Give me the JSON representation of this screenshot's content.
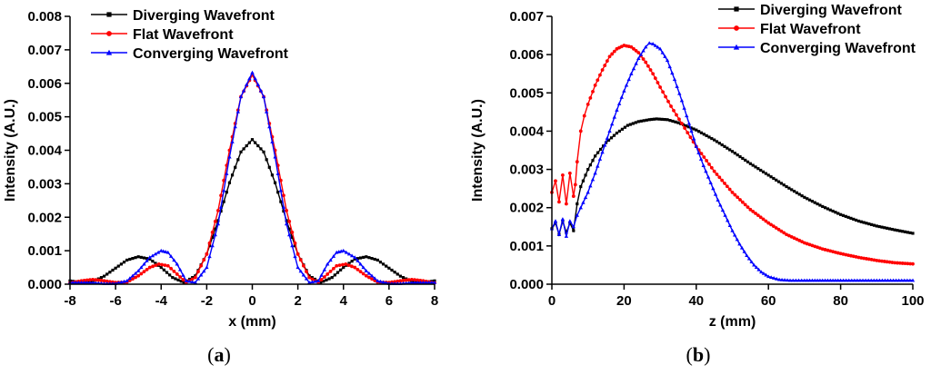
{
  "chart_data": [
    {
      "id": "a",
      "type": "line",
      "caption": "a",
      "xlabel": "x (mm)",
      "ylabel": "Intensity (A.U.)",
      "xlim": [
        -8,
        8
      ],
      "ylim": [
        0,
        0.008
      ],
      "xticks": [
        -8,
        -6,
        -4,
        -2,
        0,
        2,
        4,
        6,
        8
      ],
      "yticks": [
        0,
        0.001,
        0.002,
        0.003,
        0.004,
        0.005,
        0.006,
        0.007,
        0.008
      ],
      "xtick_labels": [
        "-8",
        "-6",
        "-4",
        "-2",
        "0",
        "2",
        "4",
        "6",
        "8"
      ],
      "ytick_labels": [
        "0.000",
        "0.001",
        "0.002",
        "0.003",
        "0.004",
        "0.005",
        "0.006",
        "0.007",
        "0.008"
      ],
      "legend_position": "top-left",
      "series": [
        {
          "name": "Diverging Wavefront",
          "color": "#000000",
          "marker": "square",
          "x": [
            0,
            0.5,
            1,
            1.5,
            2,
            2.5,
            3,
            3.5,
            4,
            4.5,
            5,
            5.5,
            6,
            6.5,
            7,
            7.5,
            8
          ],
          "y": [
            0.00432,
            0.00395,
            0.00303,
            0.0019,
            0.0009,
            0.00025,
            5e-05,
            0.0002,
            0.0005,
            0.00075,
            0.00082,
            0.00072,
            0.00048,
            0.00024,
            8e-05,
            5e-05,
            0.0001
          ],
          "symmetric": true
        },
        {
          "name": "Flat Wavefront",
          "color": "#ff0000",
          "marker": "circle",
          "x": [
            0,
            0.5,
            1,
            1.5,
            2,
            2.5,
            2.9,
            3.3,
            3.7,
            4.1,
            4.5,
            5,
            5.5,
            6,
            6.5,
            7,
            7.5,
            8
          ],
          "y": [
            0.00625,
            0.0056,
            0.004,
            0.0022,
            0.0009,
            0.0002,
            5e-05,
            0.0003,
            0.00055,
            0.0006,
            0.0005,
            0.00025,
            6e-05,
            5e-05,
            0.0001,
            0.00014,
            0.0001,
            4e-05
          ],
          "symmetric": true
        },
        {
          "name": "Converging Wavefront",
          "color": "#0000ff",
          "marker": "triangle",
          "x": [
            0,
            0.5,
            1,
            1.5,
            2,
            2.5,
            2.9,
            3.3,
            3.7,
            4.0,
            4.5,
            5,
            5.5,
            6,
            6.5,
            7,
            7.5,
            8
          ],
          "y": [
            0.00632,
            0.0056,
            0.0038,
            0.0018,
            0.0005,
            5e-05,
            0.0001,
            0.0006,
            0.00095,
            0.001,
            0.0008,
            0.0004,
            0.0001,
            2e-05,
            2e-05,
            4e-05,
            5e-05,
            5e-05
          ],
          "symmetric": true
        }
      ]
    },
    {
      "id": "b",
      "type": "line",
      "caption": "b",
      "xlabel": "z (mm)",
      "ylabel": "Intensity (A.U.)",
      "xlim": [
        0,
        100
      ],
      "ylim": [
        0,
        0.007
      ],
      "xticks": [
        0,
        20,
        40,
        60,
        80,
        100
      ],
      "yticks": [
        0,
        0.001,
        0.002,
        0.003,
        0.004,
        0.005,
        0.006,
        0.007
      ],
      "xtick_labels": [
        "0",
        "20",
        "40",
        "60",
        "80",
        "100"
      ],
      "ytick_labels": [
        "0.000",
        "0.001",
        "0.002",
        "0.003",
        "0.004",
        "0.005",
        "0.006",
        "0.007"
      ],
      "legend_position": "top-right",
      "series": [
        {
          "name": "Diverging Wavefront",
          "color": "#000000",
          "marker": "square",
          "x": [
            0,
            1,
            2,
            3,
            4,
            5,
            6,
            7,
            8,
            10,
            12,
            15,
            18,
            21,
            24,
            27,
            29,
            32,
            35,
            40,
            45,
            50,
            55,
            60,
            65,
            70,
            75,
            80,
            85,
            90,
            95,
            100
          ],
          "y": [
            0.00145,
            0.0016,
            0.0013,
            0.00165,
            0.00135,
            0.0016,
            0.0014,
            0.0021,
            0.00255,
            0.003,
            0.00335,
            0.0037,
            0.00395,
            0.00415,
            0.00425,
            0.0043,
            0.00432,
            0.0043,
            0.00422,
            0.00403,
            0.00377,
            0.00347,
            0.00315,
            0.00285,
            0.00255,
            0.00227,
            0.00203,
            0.00182,
            0.00165,
            0.00152,
            0.00142,
            0.00133
          ]
        },
        {
          "name": "Flat Wavefront",
          "color": "#ff0000",
          "marker": "circle",
          "x": [
            0,
            1,
            2,
            3,
            4,
            5,
            6,
            6.5,
            7,
            8,
            9,
            10,
            12,
            14,
            16,
            18,
            20,
            22,
            24,
            26,
            28,
            30,
            33,
            36,
            40,
            45,
            50,
            55,
            60,
            65,
            70,
            75,
            80,
            85,
            90,
            95,
            100
          ],
          "y": [
            0.0024,
            0.0027,
            0.00215,
            0.00285,
            0.0021,
            0.0029,
            0.0023,
            0.0026,
            0.0032,
            0.004,
            0.0044,
            0.0047,
            0.0052,
            0.0056,
            0.00595,
            0.00615,
            0.00624,
            0.0062,
            0.00605,
            0.0058,
            0.0055,
            0.00515,
            0.00465,
            0.0042,
            0.0036,
            0.00295,
            0.0024,
            0.00195,
            0.0016,
            0.0013,
            0.00108,
            0.00092,
            0.0008,
            0.0007,
            0.00062,
            0.00056,
            0.00053
          ]
        },
        {
          "name": "Converging Wavefront",
          "color": "#0000ff",
          "marker": "triangle",
          "x": [
            0,
            1,
            2,
            3,
            4,
            5,
            6,
            7,
            8,
            10,
            12,
            14,
            16,
            18,
            20,
            22,
            24,
            26,
            27,
            28,
            30,
            32,
            34,
            36,
            38,
            40,
            42,
            44,
            46,
            48,
            50,
            52,
            54,
            56,
            58,
            60,
            63,
            66,
            70,
            75,
            80,
            90,
            100
          ],
          "y": [
            0.00145,
            0.00165,
            0.0013,
            0.0017,
            0.00125,
            0.00165,
            0.0015,
            0.0018,
            0.002,
            0.0024,
            0.0029,
            0.00345,
            0.004,
            0.00455,
            0.00505,
            0.0055,
            0.0059,
            0.0062,
            0.0063,
            0.00628,
            0.00615,
            0.00585,
            0.00535,
            0.0048,
            0.0042,
            0.0036,
            0.0031,
            0.00265,
            0.0022,
            0.0018,
            0.0014,
            0.00105,
            0.00075,
            0.0005,
            0.00032,
            0.0002,
            0.00012,
            0.0001,
            0.0001,
            0.0001,
            0.0001,
            0.0001,
            0.0001
          ]
        }
      ]
    }
  ]
}
